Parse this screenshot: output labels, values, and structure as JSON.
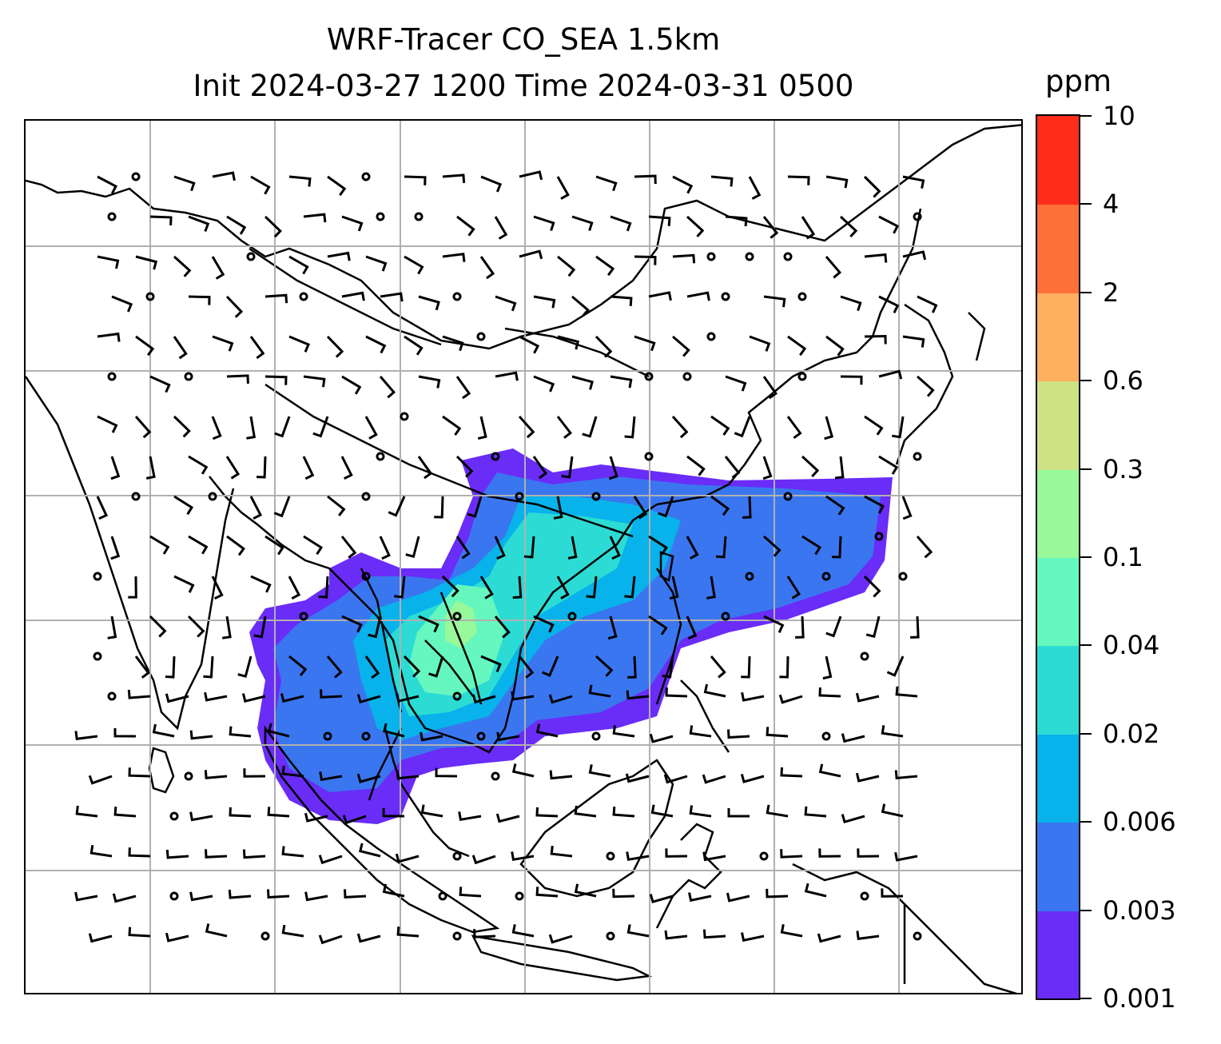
{
  "title": {
    "line1": "WRF-Tracer CO_SEA 1.5km",
    "line2": "Init 2024-03-27 1200 Time 2024-03-31 0500"
  },
  "colorbar": {
    "unit": "ppm",
    "ticks": [
      "0.001",
      "0.003",
      "0.006",
      "0.02",
      "0.04",
      "0.1",
      "0.3",
      "0.6",
      "2",
      "4",
      "10"
    ],
    "colors": [
      "#6a2cf7",
      "#3a76f0",
      "#08b2ea",
      "#2cdcd4",
      "#66f7bf",
      "#98f99a",
      "#cfe384",
      "#ffb05e",
      "#ff7038",
      "#ff2e1a"
    ]
  },
  "map": {
    "gridlines": "on",
    "gridline_color": "#b0b0b0",
    "field": "CO_SEA tracer concentration",
    "wind": "wind barbs"
  }
}
